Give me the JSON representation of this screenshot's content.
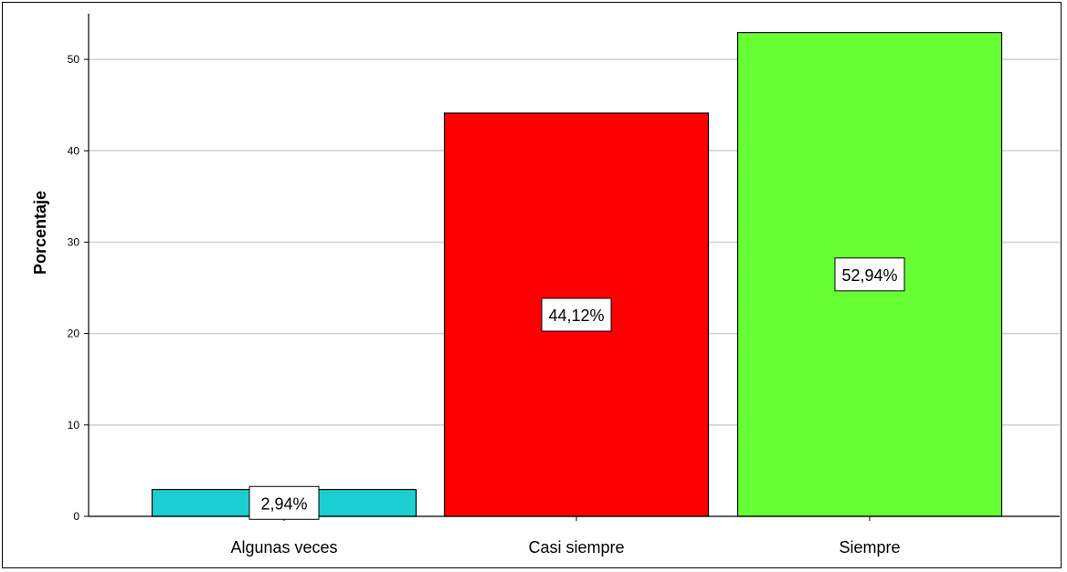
{
  "chart_data": {
    "type": "bar",
    "categories": [
      "Algunas veces",
      "Casi siempre",
      "Siempre"
    ],
    "values": [
      2.94,
      44.12,
      52.94
    ],
    "data_labels": [
      "2,94%",
      "44,12%",
      "52,94%"
    ],
    "colors": [
      "#1ccfd2",
      "#ff0000",
      "#66ff33"
    ],
    "title": "",
    "xlabel": "",
    "ylabel": "Porcentaje",
    "ylim": [
      0,
      55
    ],
    "yticks": [
      0,
      10,
      20,
      30,
      40,
      50
    ],
    "ytick_labels": [
      "0",
      "10",
      "20",
      "30",
      "40",
      "50"
    ],
    "grid": true,
    "gridline_color": "#d0d0d0",
    "bar_edge_color": "#000000"
  }
}
